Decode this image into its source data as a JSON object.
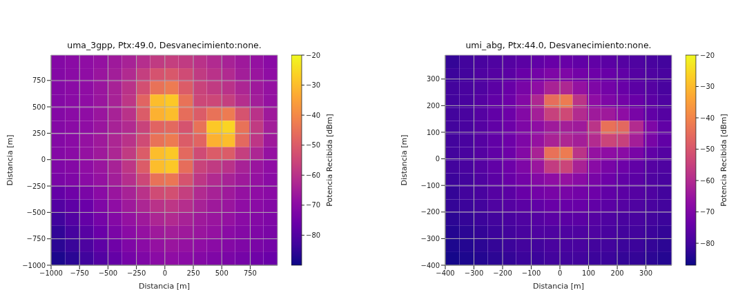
{
  "chart_data": [
    {
      "type": "heatmap",
      "title": "uma_3gpp, Ptx:49.0, Desvanecimiento:none.",
      "xlabel": "Distancia [m]",
      "ylabel": "Distancia [m]",
      "clabel": "Potencia Recibida [dBm]",
      "xlim": [
        -1000,
        990
      ],
      "ylim": [
        -1000,
        990
      ],
      "xticks": [
        -1000,
        -750,
        -500,
        -250,
        0,
        250,
        500,
        750
      ],
      "yticks": [
        -1000,
        -750,
        -500,
        -250,
        0,
        250,
        500,
        750
      ],
      "clim": [
        -90,
        -20
      ],
      "cticks": [
        -80,
        -70,
        -60,
        -50,
        -40,
        -30,
        -20
      ],
      "grid": true,
      "cells": [
        [
          -71,
          -70,
          -69,
          -68,
          -66,
          -64,
          -61,
          -58,
          -57,
          -58,
          -60,
          -62,
          -64,
          -66,
          -68,
          -70
        ],
        [
          -71,
          -70,
          -69,
          -67,
          -65,
          -62,
          -57,
          -52,
          -51,
          -54,
          -58,
          -60,
          -62,
          -65,
          -67,
          -69
        ],
        [
          -71,
          -70,
          -69,
          -67,
          -64,
          -60,
          -53,
          -45,
          -43,
          -50,
          -56,
          -58,
          -60,
          -63,
          -66,
          -68
        ],
        [
          -71,
          -70,
          -69,
          -67,
          -64,
          -59,
          -48,
          -30,
          -28,
          -45,
          -55,
          -55,
          -57,
          -61,
          -65,
          -68
        ],
        [
          -71,
          -70,
          -69,
          -67,
          -64,
          -60,
          -50,
          -32,
          -30,
          -46,
          -50,
          -45,
          -43,
          -52,
          -60,
          -66
        ],
        [
          -71,
          -70,
          -69,
          -67,
          -64,
          -62,
          -56,
          -48,
          -47,
          -52,
          -45,
          -28,
          -26,
          -45,
          -58,
          -65
        ],
        [
          -71,
          -70,
          -68,
          -66,
          -63,
          -60,
          -54,
          -45,
          -43,
          -50,
          -48,
          -32,
          -30,
          -47,
          -59,
          -66
        ],
        [
          -71,
          -70,
          -68,
          -66,
          -63,
          -58,
          -50,
          -30,
          -28,
          -47,
          -54,
          -50,
          -50,
          -57,
          -63,
          -68
        ],
        [
          -72,
          -71,
          -69,
          -67,
          -64,
          -59,
          -50,
          -30,
          -28,
          -46,
          -56,
          -58,
          -60,
          -64,
          -67,
          -69
        ],
        [
          -73,
          -72,
          -70,
          -68,
          -65,
          -61,
          -55,
          -45,
          -44,
          -52,
          -59,
          -62,
          -64,
          -66,
          -68,
          -70
        ],
        [
          -77,
          -75,
          -73,
          -70,
          -67,
          -64,
          -60,
          -54,
          -53,
          -57,
          -62,
          -64,
          -66,
          -68,
          -69,
          -70
        ],
        [
          -80,
          -78,
          -76,
          -72,
          -69,
          -66,
          -63,
          -60,
          -59,
          -61,
          -64,
          -66,
          -67,
          -69,
          -70,
          -71
        ],
        [
          -83,
          -80,
          -77,
          -74,
          -71,
          -68,
          -66,
          -63,
          -62,
          -64,
          -66,
          -67,
          -68,
          -70,
          -71,
          -72
        ],
        [
          -85,
          -82,
          -79,
          -76,
          -73,
          -70,
          -68,
          -66,
          -65,
          -66,
          -67,
          -68,
          -70,
          -71,
          -72,
          -73
        ],
        [
          -86,
          -84,
          -81,
          -78,
          -75,
          -72,
          -70,
          -68,
          -67,
          -68,
          -69,
          -70,
          -71,
          -72,
          -73,
          -74
        ],
        [
          -88,
          -86,
          -83,
          -80,
          -77,
          -74,
          -72,
          -70,
          -69,
          -70,
          -71,
          -72,
          -73,
          -74,
          -75,
          -76
        ]
      ]
    },
    {
      "type": "heatmap",
      "title": "umi_abg, Ptx:44.0, Desvanecimiento:none.",
      "xlabel": "Distancia [m]",
      "ylabel": "Distancia [m]",
      "clabel": "Potencia Recibida [dBm]",
      "xlim": [
        -400,
        390
      ],
      "ylim": [
        -400,
        390
      ],
      "xticks": [
        -400,
        -300,
        -200,
        -100,
        0,
        100,
        200,
        300
      ],
      "yticks": [
        -400,
        -300,
        -200,
        -100,
        0,
        100,
        200,
        300
      ],
      "clim": [
        -87,
        -20
      ],
      "cticks": [
        -80,
        -70,
        -60,
        -50,
        -40,
        -30,
        -20
      ],
      "grid": true,
      "cells": [
        [
          -82,
          -80,
          -79,
          -78,
          -77,
          -76,
          -75,
          -74,
          -74,
          -75,
          -75,
          -76,
          -77,
          -78,
          -79,
          -80
        ],
        [
          -81,
          -80,
          -78,
          -77,
          -76,
          -74,
          -72,
          -70,
          -70,
          -72,
          -73,
          -74,
          -75,
          -77,
          -78,
          -79
        ],
        [
          -80,
          -79,
          -78,
          -76,
          -74,
          -71,
          -67,
          -62,
          -61,
          -66,
          -70,
          -72,
          -74,
          -76,
          -77,
          -79
        ],
        [
          -80,
          -79,
          -77,
          -75,
          -73,
          -69,
          -61,
          -45,
          -42,
          -58,
          -67,
          -70,
          -72,
          -74,
          -76,
          -78
        ],
        [
          -80,
          -79,
          -77,
          -75,
          -73,
          -69,
          -63,
          -55,
          -53,
          -60,
          -64,
          -64,
          -67,
          -71,
          -75,
          -77
        ],
        [
          -80,
          -79,
          -77,
          -75,
          -73,
          -70,
          -67,
          -64,
          -63,
          -64,
          -58,
          -44,
          -46,
          -60,
          -70,
          -75
        ],
        [
          -80,
          -79,
          -77,
          -75,
          -73,
          -70,
          -66,
          -62,
          -61,
          -63,
          -60,
          -54,
          -55,
          -63,
          -71,
          -75
        ],
        [
          -80,
          -79,
          -77,
          -75,
          -73,
          -69,
          -62,
          -44,
          -42,
          -58,
          -66,
          -67,
          -68,
          -71,
          -75,
          -77
        ],
        [
          -80,
          -79,
          -77,
          -75,
          -73,
          -70,
          -65,
          -56,
          -54,
          -62,
          -68,
          -71,
          -73,
          -75,
          -77,
          -78
        ],
        [
          -81,
          -80,
          -78,
          -76,
          -74,
          -72,
          -69,
          -67,
          -66,
          -68,
          -71,
          -73,
          -75,
          -76,
          -78,
          -79
        ],
        [
          -82,
          -80,
          -79,
          -77,
          -76,
          -74,
          -72,
          -71,
          -71,
          -72,
          -73,
          -75,
          -76,
          -77,
          -78,
          -80
        ],
        [
          -82,
          -81,
          -80,
          -78,
          -77,
          -76,
          -75,
          -74,
          -74,
          -74,
          -75,
          -76,
          -77,
          -78,
          -79,
          -80
        ],
        [
          -83,
          -82,
          -81,
          -80,
          -79,
          -78,
          -77,
          -76,
          -76,
          -76,
          -77,
          -78,
          -79,
          -79,
          -80,
          -81
        ],
        [
          -84,
          -83,
          -82,
          -81,
          -80,
          -79,
          -78,
          -78,
          -78,
          -78,
          -78,
          -79,
          -80,
          -80,
          -81,
          -82
        ],
        [
          -85,
          -84,
          -83,
          -82,
          -81,
          -80,
          -80,
          -79,
          -79,
          -79,
          -80,
          -80,
          -81,
          -81,
          -82,
          -83
        ],
        [
          -86,
          -85,
          -84,
          -83,
          -82,
          -81,
          -81,
          -80,
          -80,
          -80,
          -81,
          -81,
          -82,
          -82,
          -83,
          -84
        ]
      ]
    }
  ]
}
